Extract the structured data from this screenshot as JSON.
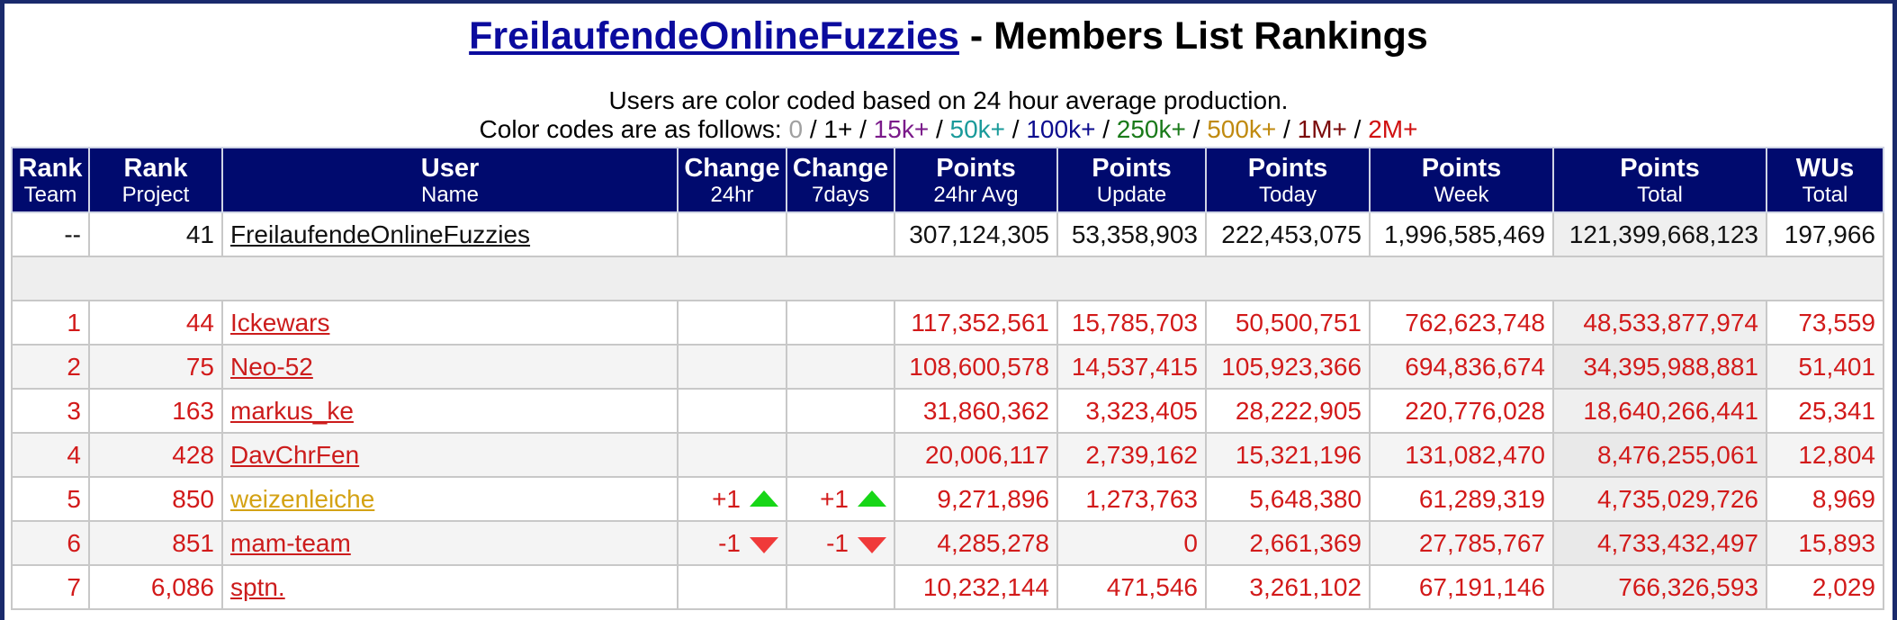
{
  "header": {
    "team_link": "FreilaufendeOnlineFuzzies",
    "title_suffix": " - Members List Rankings",
    "subtitle": "Users are color coded based on 24 hour average production.",
    "codes_prefix": "Color codes are as follows: ",
    "color_codes": [
      {
        "label": "0",
        "color": "#a0a0a0"
      },
      {
        "label": "1+",
        "color": "#000000"
      },
      {
        "label": "15k+",
        "color": "#7a1a8a"
      },
      {
        "label": "50k+",
        "color": "#1a9a9a"
      },
      {
        "label": "100k+",
        "color": "#0b0b8e"
      },
      {
        "label": "250k+",
        "color": "#1a7a1a"
      },
      {
        "label": "500k+",
        "color": "#c08a10"
      },
      {
        "label": "1M+",
        "color": "#7a0a0a"
      },
      {
        "label": "2M+",
        "color": "#d01010"
      }
    ],
    "separator": " / "
  },
  "columns": [
    {
      "top": "Rank",
      "bottom": "Team"
    },
    {
      "top": "Rank",
      "bottom": "Project"
    },
    {
      "top": "User",
      "bottom": "Name"
    },
    {
      "top": "Change",
      "bottom": "24hr"
    },
    {
      "top": "Change",
      "bottom": "7days"
    },
    {
      "top": "Points",
      "bottom": "24hr Avg"
    },
    {
      "top": "Points",
      "bottom": "Update"
    },
    {
      "top": "Points",
      "bottom": "Today"
    },
    {
      "top": "Points",
      "bottom": "Week"
    },
    {
      "top": "Points",
      "bottom": "Total"
    },
    {
      "top": "WUs",
      "bottom": "Total"
    }
  ],
  "team_row": {
    "rank_team": "--",
    "rank_project": "41",
    "name": "FreilaufendeOnlineFuzzies",
    "change_24hr": "",
    "change_7days": "",
    "avg_24hr": "307,124,305",
    "update": "53,358,903",
    "today": "222,453,075",
    "week": "1,996,585,469",
    "total": "121,399,668,123",
    "wus": "197,966"
  },
  "members": [
    {
      "rank_team": "1",
      "rank_project": "44",
      "name": "Ickewars",
      "change_24hr": "",
      "change_7days": "",
      "avg_24hr": "117,352,561",
      "update": "15,785,703",
      "today": "50,500,751",
      "week": "762,623,748",
      "total": "48,533,877,974",
      "wus": "73,559"
    },
    {
      "rank_team": "2",
      "rank_project": "75",
      "name": "Neo-52",
      "change_24hr": "",
      "change_7days": "",
      "avg_24hr": "108,600,578",
      "update": "14,537,415",
      "today": "105,923,366",
      "week": "694,836,674",
      "total": "34,395,988,881",
      "wus": "51,401"
    },
    {
      "rank_team": "3",
      "rank_project": "163",
      "name": "markus_ke",
      "change_24hr": "",
      "change_7days": "",
      "avg_24hr": "31,860,362",
      "update": "3,323,405",
      "today": "28,222,905",
      "week": "220,776,028",
      "total": "18,640,266,441",
      "wus": "25,341"
    },
    {
      "rank_team": "4",
      "rank_project": "428",
      "name": "DavChrFen",
      "change_24hr": "",
      "change_7days": "",
      "avg_24hr": "20,006,117",
      "update": "2,739,162",
      "today": "15,321,196",
      "week": "131,082,470",
      "total": "8,476,255,061",
      "wus": "12,804"
    },
    {
      "rank_team": "5",
      "rank_project": "850",
      "name": "weizenleiche",
      "change_24hr": "+1",
      "change_7days": "+1",
      "avg_24hr": "9,271,896",
      "update": "1,273,763",
      "today": "5,648,380",
      "week": "61,289,319",
      "total": "4,735,029,726",
      "wus": "8,969"
    },
    {
      "rank_team": "6",
      "rank_project": "851",
      "name": "mam-team",
      "change_24hr": "-1",
      "change_7days": "-1",
      "avg_24hr": "4,285,278",
      "update": "0",
      "today": "2,661,369",
      "week": "27,785,767",
      "total": "4,733,432,497",
      "wus": "15,893"
    },
    {
      "rank_team": "7",
      "rank_project": "6,086",
      "name": "sptn.",
      "change_24hr": "",
      "change_7days": "",
      "avg_24hr": "10,232,144",
      "update": "471,546",
      "today": "3,261,102",
      "week": "67,191,146",
      "total": "766,326,593",
      "wus": "2,029"
    }
  ]
}
